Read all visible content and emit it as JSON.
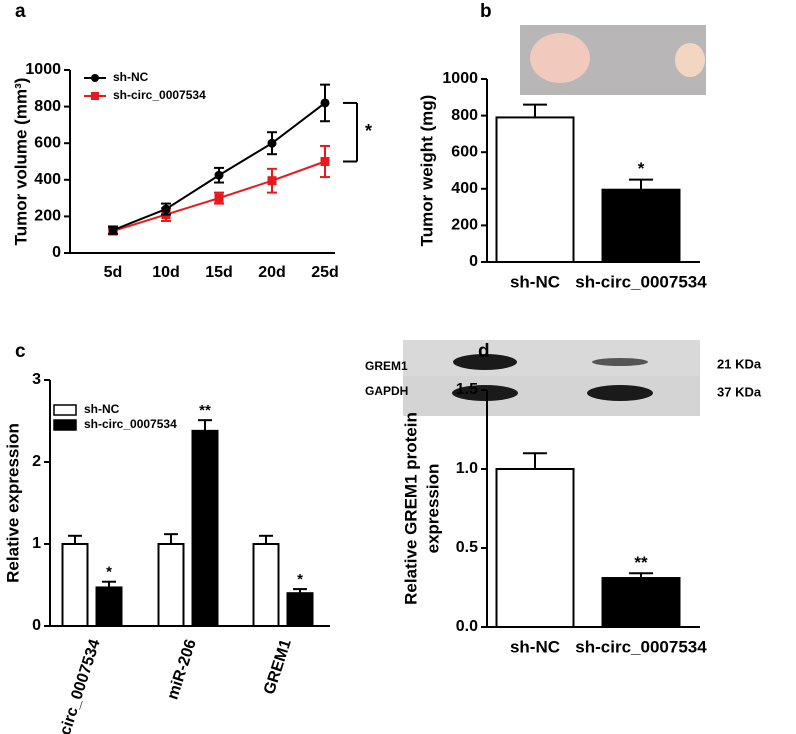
{
  "chart_data": [
    {
      "type": "line",
      "panel_label": "a",
      "y_label": "Tumor volume (mm³)",
      "categories": [
        "5d",
        "10d",
        "15d",
        "20d",
        "25d"
      ],
      "series": [
        {
          "name": "sh-NC",
          "color": "#000000",
          "marker": "circle",
          "values": [
            125,
            240,
            425,
            600,
            820
          ],
          "errors": [
            20,
            30,
            40,
            60,
            100
          ]
        },
        {
          "name": "sh-circ_0007534",
          "color": "#e8191d",
          "marker": "square",
          "values": [
            120,
            210,
            300,
            395,
            500
          ],
          "errors": [
            15,
            35,
            30,
            65,
            85
          ]
        }
      ],
      "ylim": [
        0,
        1000
      ],
      "yticks": [
        0,
        200,
        400,
        600,
        800,
        1000
      ],
      "significance": "*"
    },
    {
      "type": "bar",
      "panel_label": "b",
      "y_label": "Tumor weight (mg)",
      "categories": [
        "sh-NC",
        "sh-circ_0007534"
      ],
      "values": [
        790,
        395
      ],
      "errors": [
        70,
        55
      ],
      "colors": [
        "#ffffff",
        "#000000"
      ],
      "significance": [
        null,
        "*"
      ],
      "ylim": [
        0,
        1000
      ],
      "yticks": [
        0,
        200,
        400,
        600,
        800,
        1000
      ]
    },
    {
      "type": "grouped_bar",
      "panel_label": "c",
      "y_label": "Relative expression",
      "categories": [
        "circ_0007534",
        "miR-206",
        "GREM1"
      ],
      "series": [
        {
          "name": "sh-NC",
          "color": "#ffffff",
          "values": [
            1,
            1,
            1
          ],
          "errors": [
            0.1,
            0.12,
            0.1
          ]
        },
        {
          "name": "sh-circ_0007534",
          "color": "#000000",
          "values": [
            0.47,
            2.38,
            0.4
          ],
          "errors": [
            0.07,
            0.13,
            0.05
          ],
          "significance": [
            "*",
            "**",
            "*"
          ]
        }
      ],
      "ylim": [
        0,
        3
      ],
      "yticks": [
        0,
        1,
        2,
        3
      ]
    },
    {
      "type": "bar",
      "panel_label": "d",
      "y_label": [
        "Relative GREM1 protein",
        "expression"
      ],
      "categories": [
        "sh-NC",
        "sh-circ_0007534"
      ],
      "values": [
        1,
        0.31
      ],
      "errors": [
        0.1,
        0.03
      ],
      "colors": [
        "#ffffff",
        "#000000"
      ],
      "significance": [
        null,
        "**"
      ],
      "ylim": [
        0,
        1.5
      ],
      "yticks": [
        {
          "value": 0,
          "label": "0.0"
        },
        {
          "value": 0.5,
          "label": "0.5"
        },
        {
          "value": 1,
          "label": "1.0"
        },
        {
          "value": 1.5,
          "label": "1.5"
        }
      ],
      "blot": {
        "rows": [
          {
            "protein": "GREM1",
            "size": "21 KDa"
          },
          {
            "protein": "GAPDH",
            "size": "37 KDa"
          }
        ]
      }
    }
  ]
}
